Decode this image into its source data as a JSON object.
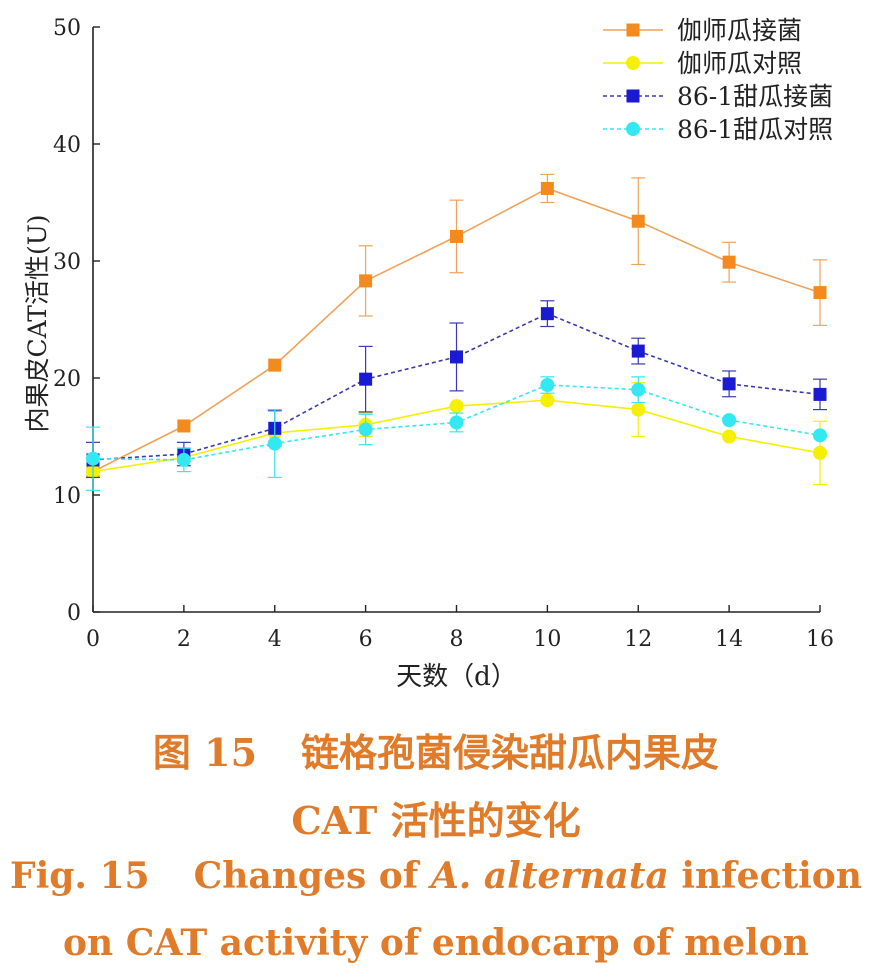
{
  "chart_data": {
    "type": "line",
    "x": [
      0,
      2,
      4,
      6,
      8,
      10,
      12,
      14,
      16
    ],
    "xlim": [
      0,
      16
    ],
    "ylim": [
      0,
      50
    ],
    "xticks": [
      0,
      2,
      4,
      6,
      8,
      10,
      12,
      14,
      16
    ],
    "yticks": [
      0,
      10,
      20,
      30,
      40,
      50
    ],
    "xlabel": "天数（d）",
    "ylabel": "内果皮CAT活性(U)",
    "grid": false,
    "legend_position": "top-right",
    "series": [
      {
        "name": "伽师瓜接菌",
        "marker": "square",
        "dash": "solid",
        "color": "#f28a1e",
        "line_color": "#f0a25a",
        "values": [
          12.0,
          15.9,
          21.1,
          28.3,
          32.1,
          36.2,
          33.4,
          29.9,
          27.3
        ],
        "error": [
          0.0,
          0.0,
          0.0,
          3.0,
          3.1,
          1.2,
          3.7,
          1.7,
          2.8
        ]
      },
      {
        "name": "伽师瓜对照",
        "marker": "circle",
        "dash": "solid",
        "color": "#f4f000",
        "line_color": "#f4f000",
        "values": [
          12.0,
          13.2,
          15.3,
          16.0,
          17.6,
          18.1,
          17.3,
          15.0,
          13.6
        ],
        "error": [
          0.0,
          0.0,
          0.0,
          1.0,
          0.0,
          0.0,
          2.3,
          0.0,
          2.7
        ]
      },
      {
        "name": "86-1甜瓜接菌",
        "marker": "square",
        "dash": "dashed",
        "color": "#1a1ad0",
        "line_color": "#3a3ab0",
        "values": [
          13.0,
          13.5,
          15.7,
          19.9,
          21.8,
          25.5,
          22.3,
          19.5,
          18.6
        ],
        "error": [
          1.5,
          1.0,
          1.5,
          2.8,
          2.9,
          1.1,
          1.1,
          1.1,
          1.3
        ]
      },
      {
        "name": "86-1甜瓜对照",
        "marker": "circle",
        "dash": "dashed",
        "color": "#33e8f0",
        "line_color": "#33e8f0",
        "values": [
          13.1,
          13.0,
          14.4,
          15.6,
          16.2,
          19.4,
          19.0,
          16.4,
          15.1
        ],
        "error": [
          2.7,
          1.0,
          2.9,
          1.3,
          0.8,
          0.7,
          1.1,
          0.0,
          0.0
        ]
      }
    ]
  },
  "caption": {
    "zh_line1_prefix": "图 15",
    "zh_line1_text": "链格孢菌侵染甜瓜内果皮",
    "zh_line2": "CAT 活性的变化",
    "en_line1_prefix": "Fig. 15",
    "en_line1_text_a": "Changes of ",
    "en_line1_text_species": "A. alternata",
    "en_line1_text_b": " infection",
    "en_line2": "on CAT activity of endocarp of melon"
  }
}
